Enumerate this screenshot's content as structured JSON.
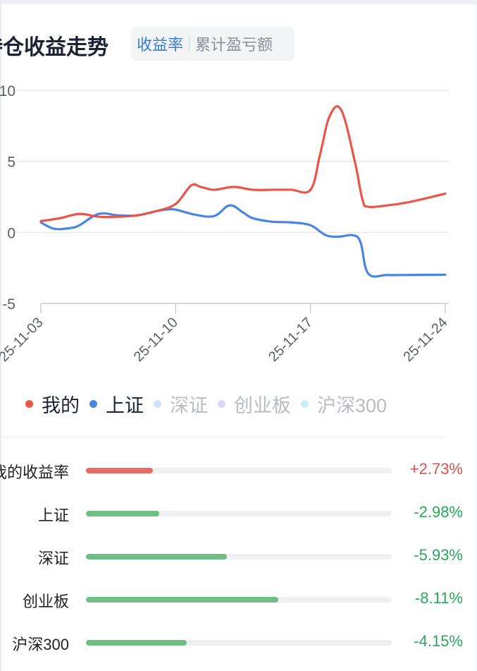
{
  "header": {
    "title": "持仓收益走势",
    "toggle": {
      "active": "收益率",
      "inactive": "累计盈亏额"
    }
  },
  "colors": {
    "mine": "#ea5548",
    "sh": "#4a86e0",
    "sz": "#cfe3fb",
    "cyb": "#d9d7fb",
    "hs300": "#c9eef3",
    "up": "#d9534f",
    "down": "#27a85c",
    "bar_up": "#e86a66",
    "bar_down": "#6fbf85"
  },
  "chart_data": {
    "type": "line",
    "ylim": [
      -5,
      10
    ],
    "yticks": [
      "10",
      "5",
      "0",
      "-5"
    ],
    "xticks": [
      "25-11-03",
      "25-11-10",
      "25-11-17",
      "25-11-24"
    ],
    "xlim": [
      0,
      21
    ],
    "series": [
      {
        "name": "我的",
        "x": [
          0,
          1,
          2,
          3,
          4,
          5,
          6,
          7,
          7.8,
          8.3,
          9,
          10,
          11,
          12,
          13,
          14,
          14.5,
          15,
          15.6,
          16.3,
          16.7,
          17,
          18,
          19,
          20,
          21
        ],
        "values": [
          0.8,
          1.0,
          1.3,
          1.1,
          1.1,
          1.2,
          1.5,
          2.0,
          3.3,
          3.2,
          3.0,
          3.2,
          3.0,
          3.0,
          3.0,
          3.0,
          5.5,
          8.2,
          8.6,
          5.0,
          2.3,
          1.8,
          1.9,
          2.1,
          2.4,
          2.73
        ]
      },
      {
        "name": "上证",
        "x": [
          0,
          0.7,
          1.5,
          2,
          3,
          4,
          5,
          6,
          6.5,
          7,
          8,
          9,
          9.8,
          10.5,
          11,
          12,
          13,
          14,
          14.8,
          15.5,
          16.2,
          16.6,
          17,
          18,
          19,
          20,
          21
        ],
        "values": [
          0.7,
          0.25,
          0.3,
          0.5,
          1.3,
          1.2,
          1.2,
          1.5,
          1.6,
          1.6,
          1.25,
          1.15,
          1.9,
          1.4,
          1.0,
          0.75,
          0.7,
          0.5,
          -0.2,
          -0.3,
          -0.2,
          -0.7,
          -2.9,
          -3.0,
          -3.0,
          -2.99,
          -2.98
        ]
      }
    ],
    "legend": [
      {
        "name": "我的",
        "active": true,
        "color": "#ea5548"
      },
      {
        "name": "上证",
        "active": true,
        "color": "#4a86e0"
      },
      {
        "name": "深证",
        "active": false,
        "color": "#cfe3fb"
      },
      {
        "name": "创业板",
        "active": false,
        "color": "#d9d7fb"
      },
      {
        "name": "沪深300",
        "active": false,
        "color": "#c9eef3"
      }
    ]
  },
  "comparison": [
    {
      "label": "我的收益率",
      "value": "+2.73%",
      "fraction": 0.22,
      "direction": "up"
    },
    {
      "label": "上证",
      "value": "-2.98%",
      "fraction": 0.24,
      "direction": "down"
    },
    {
      "label": "深证",
      "value": "-5.93%",
      "fraction": 0.46,
      "direction": "down"
    },
    {
      "label": "创业板",
      "value": "-8.11%",
      "fraction": 0.63,
      "direction": "down"
    },
    {
      "label": "沪深300",
      "value": "-4.15%",
      "fraction": 0.33,
      "direction": "down"
    }
  ]
}
